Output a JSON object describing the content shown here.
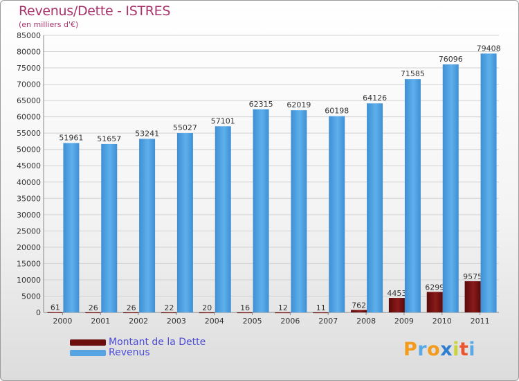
{
  "header": {
    "title": "Revenus/Dette - ISTRES",
    "subtitle": "(en milliers d'€)"
  },
  "logo": {
    "letters": [
      "P",
      "r",
      "o",
      "x",
      "i",
      "t",
      "i"
    ],
    "colors": [
      "#f29b1d",
      "#5aa9e6",
      "#f29b1d",
      "#2f7fd0",
      "#c8d43a",
      "#e8552e",
      "#5aa9e6"
    ]
  },
  "chart_data": {
    "type": "bar",
    "title": "Revenus/Dette - ISTRES",
    "subtitle": "(en milliers d'€)",
    "categories": [
      "2000",
      "2001",
      "2002",
      "2003",
      "2004",
      "2005",
      "2006",
      "2007",
      "2008",
      "2009",
      "2010",
      "2011"
    ],
    "series": [
      {
        "name": "Montant de la Dette",
        "color": "#6b0f0f",
        "values": [
          61,
          26,
          26,
          22,
          20,
          16,
          12,
          11,
          762,
          4453,
          6299,
          9575
        ],
        "labels": [
          "61",
          "26",
          "26",
          "22",
          "20",
          "16",
          "12",
          "11",
          "762",
          "4453",
          "6299",
          "9575"
        ]
      },
      {
        "name": "Revenus",
        "color": "#56a5e2",
        "values": [
          51961,
          51657,
          53241,
          55027,
          57101,
          62315,
          62019,
          60198,
          64126,
          71585,
          76096,
          79408
        ],
        "labels": [
          "51961",
          "51657",
          "53241",
          "55027",
          "57101",
          "62315",
          "62019",
          "60198",
          "64126",
          "71585",
          "76096",
          "79408"
        ]
      }
    ],
    "y_ticks": [
      "0",
      "5000",
      "10000",
      "15000",
      "20000",
      "25000",
      "30000",
      "35000",
      "40000",
      "45000",
      "50000",
      "55000",
      "60000",
      "65000",
      "70000",
      "75000",
      "80000",
      "85000"
    ],
    "ylim": [
      0,
      85000
    ],
    "ystep": 5000,
    "grid": true,
    "legend_position": "bottom-left"
  }
}
